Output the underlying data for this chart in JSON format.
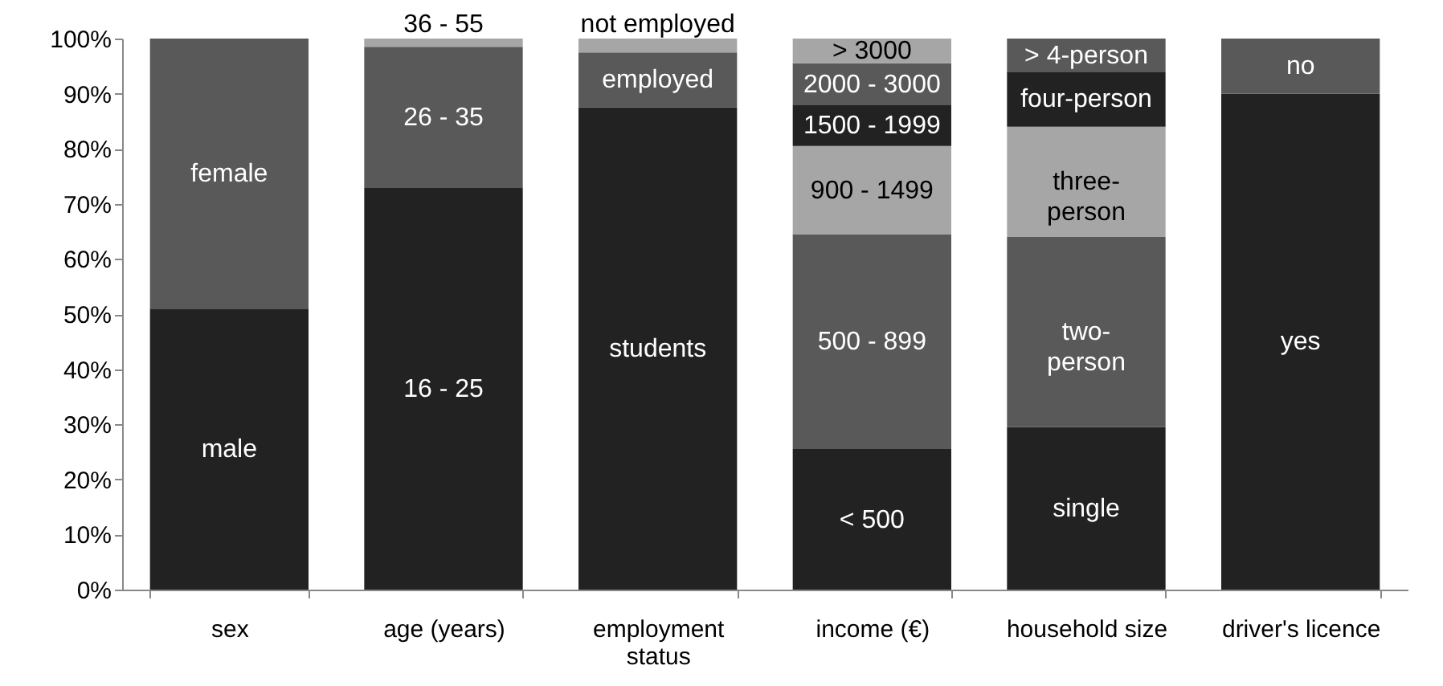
{
  "chart_data": {
    "type": "bar",
    "stacked": true,
    "categories": [
      "sex",
      "age (years)",
      "employment status",
      "income (€)",
      "household size",
      "driver's licence"
    ],
    "ylim": [
      0,
      100
    ],
    "yticks": [
      {
        "value": 0,
        "label": "0%"
      },
      {
        "value": 10,
        "label": "10%"
      },
      {
        "value": 20,
        "label": "20%"
      },
      {
        "value": 30,
        "label": "30%"
      },
      {
        "value": 40,
        "label": "40%"
      },
      {
        "value": 50,
        "label": "50%"
      },
      {
        "value": 60,
        "label": "60%"
      },
      {
        "value": 70,
        "label": "70%"
      },
      {
        "value": 80,
        "label": "80%"
      },
      {
        "value": 90,
        "label": "90%"
      },
      {
        "value": 100,
        "label": "100%"
      }
    ],
    "grid": false,
    "series": [
      {
        "color": "#222222",
        "values": [
          51,
          73,
          87.5,
          25.5,
          29.5,
          90
        ]
      },
      {
        "color": "#595959",
        "values": [
          49,
          25.5,
          10,
          39,
          34.5,
          10
        ]
      },
      {
        "color": "#a6a6a6",
        "values": [
          null,
          1.5,
          2.5,
          16,
          20,
          null
        ]
      },
      {
        "color": "#222222",
        "values": [
          null,
          null,
          null,
          7.5,
          10,
          null
        ]
      },
      {
        "color": "#595959",
        "values": [
          null,
          null,
          null,
          7.5,
          6,
          null
        ]
      },
      {
        "color": "#a6a6a6",
        "values": [
          null,
          null,
          null,
          4.5,
          null,
          null
        ]
      }
    ],
    "annotations": [
      "male",
      "female",
      "16 - 25",
      "26 - 35",
      "36 - 55",
      "students",
      "employed",
      "not employed",
      "< 500",
      "500 - 899",
      "900 - 1499",
      "1500 - 1999",
      "2000 - 3000",
      "> 3000",
      "single",
      "two-\nperson",
      "three-\nperson",
      "four-person",
      "> 4-person",
      "yes",
      "no"
    ]
  }
}
